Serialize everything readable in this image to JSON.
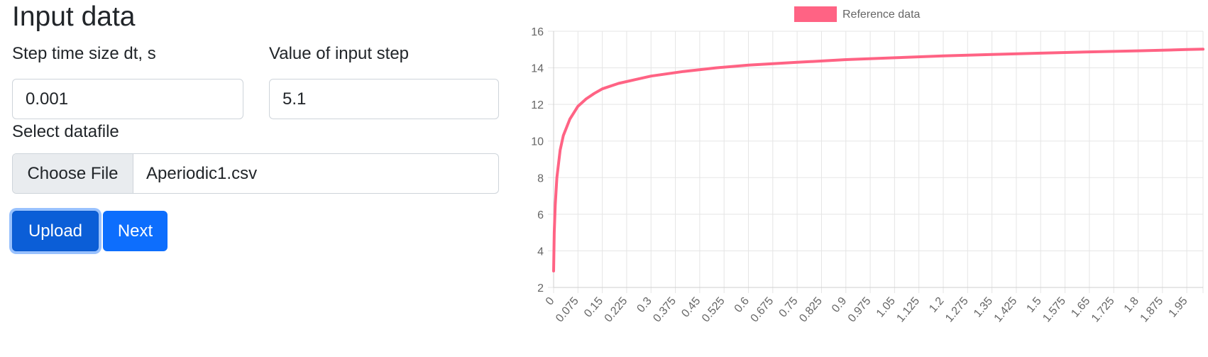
{
  "form": {
    "title": "Input data",
    "dt_label": "Step time size dt, s",
    "dt_value": "0.001",
    "step_label": "Value of input step",
    "step_value": "5.1",
    "file_label": "Select datafile",
    "choose_label": "Choose File",
    "file_name": "Aperiodic1.csv",
    "upload_label": "Upload",
    "next_label": "Next"
  },
  "colors": {
    "series": "#ff6384",
    "primary": "#0d6efd",
    "primary_active": "#0b5ed7",
    "grid": "#e5e5e5",
    "tick_text": "#666666"
  },
  "chart_data": {
    "type": "line",
    "legend_position": "top",
    "grid": true,
    "ylim": [
      2,
      16
    ],
    "y_ticks": [
      "2",
      "4",
      "6",
      "8",
      "10",
      "12",
      "14",
      "16"
    ],
    "x_ticks": [
      "0",
      "0.075",
      "0.15",
      "0.225",
      "0.3",
      "0.375",
      "0.45",
      "0.525",
      "0.6",
      "0.675",
      "0.75",
      "0.825",
      "0.9",
      "0.975",
      "1.05",
      "1.125",
      "1.2",
      "1.275",
      "1.35",
      "1.425",
      "1.5",
      "1.575",
      "1.65",
      "1.725",
      "1.8",
      "1.875",
      "1.95"
    ],
    "xlim": [
      0,
      2.0
    ],
    "series": [
      {
        "name": "Reference data",
        "color": "#ff6384",
        "x": [
          0,
          0.002,
          0.005,
          0.01,
          0.02,
          0.03,
          0.05,
          0.075,
          0.1,
          0.125,
          0.15,
          0.2,
          0.25,
          0.3,
          0.4,
          0.5,
          0.6,
          0.75,
          0.9,
          1.05,
          1.2,
          1.35,
          1.5,
          1.65,
          1.8,
          1.95,
          2.0
        ],
        "y": [
          2.9,
          5.0,
          6.5,
          8.0,
          9.5,
          10.3,
          11.2,
          11.9,
          12.3,
          12.6,
          12.85,
          13.15,
          13.35,
          13.55,
          13.8,
          14.0,
          14.15,
          14.3,
          14.45,
          14.55,
          14.65,
          14.73,
          14.8,
          14.87,
          14.93,
          15.0,
          15.02
        ]
      }
    ]
  }
}
